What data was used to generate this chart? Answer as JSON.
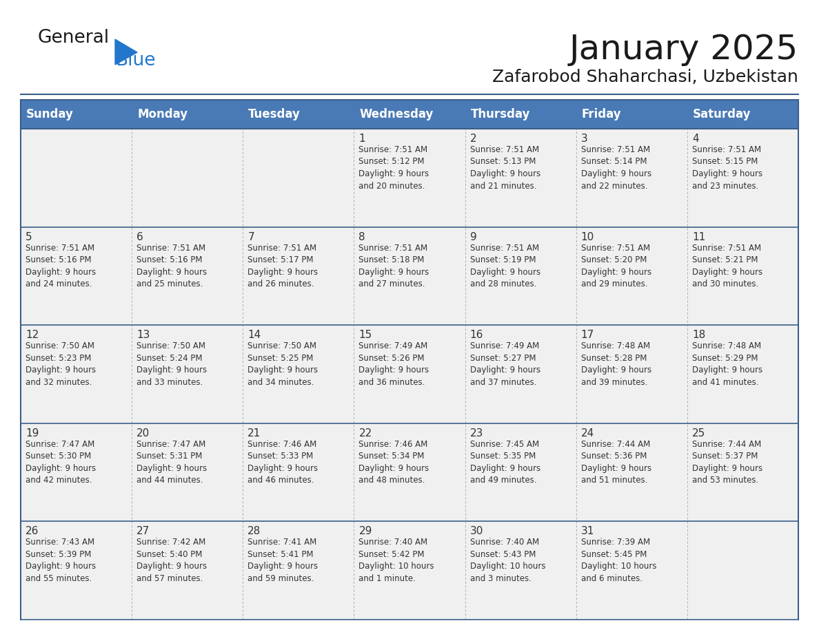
{
  "title": "January 2025",
  "subtitle": "Zafarobod Shaharchasi, Uzbekistan",
  "header_color": "#4a7ab5",
  "header_text_color": "#ffffff",
  "cell_bg_color": "#f0f0f0",
  "grid_color": "#3a5f8a",
  "text_color": "#333333",
  "days_of_week": [
    "Sunday",
    "Monday",
    "Tuesday",
    "Wednesday",
    "Thursday",
    "Friday",
    "Saturday"
  ],
  "calendar_data": [
    [
      {
        "day": "",
        "info": ""
      },
      {
        "day": "",
        "info": ""
      },
      {
        "day": "",
        "info": ""
      },
      {
        "day": "1",
        "info": "Sunrise: 7:51 AM\nSunset: 5:12 PM\nDaylight: 9 hours\nand 20 minutes."
      },
      {
        "day": "2",
        "info": "Sunrise: 7:51 AM\nSunset: 5:13 PM\nDaylight: 9 hours\nand 21 minutes."
      },
      {
        "day": "3",
        "info": "Sunrise: 7:51 AM\nSunset: 5:14 PM\nDaylight: 9 hours\nand 22 minutes."
      },
      {
        "day": "4",
        "info": "Sunrise: 7:51 AM\nSunset: 5:15 PM\nDaylight: 9 hours\nand 23 minutes."
      }
    ],
    [
      {
        "day": "5",
        "info": "Sunrise: 7:51 AM\nSunset: 5:16 PM\nDaylight: 9 hours\nand 24 minutes."
      },
      {
        "day": "6",
        "info": "Sunrise: 7:51 AM\nSunset: 5:16 PM\nDaylight: 9 hours\nand 25 minutes."
      },
      {
        "day": "7",
        "info": "Sunrise: 7:51 AM\nSunset: 5:17 PM\nDaylight: 9 hours\nand 26 minutes."
      },
      {
        "day": "8",
        "info": "Sunrise: 7:51 AM\nSunset: 5:18 PM\nDaylight: 9 hours\nand 27 minutes."
      },
      {
        "day": "9",
        "info": "Sunrise: 7:51 AM\nSunset: 5:19 PM\nDaylight: 9 hours\nand 28 minutes."
      },
      {
        "day": "10",
        "info": "Sunrise: 7:51 AM\nSunset: 5:20 PM\nDaylight: 9 hours\nand 29 minutes."
      },
      {
        "day": "11",
        "info": "Sunrise: 7:51 AM\nSunset: 5:21 PM\nDaylight: 9 hours\nand 30 minutes."
      }
    ],
    [
      {
        "day": "12",
        "info": "Sunrise: 7:50 AM\nSunset: 5:23 PM\nDaylight: 9 hours\nand 32 minutes."
      },
      {
        "day": "13",
        "info": "Sunrise: 7:50 AM\nSunset: 5:24 PM\nDaylight: 9 hours\nand 33 minutes."
      },
      {
        "day": "14",
        "info": "Sunrise: 7:50 AM\nSunset: 5:25 PM\nDaylight: 9 hours\nand 34 minutes."
      },
      {
        "day": "15",
        "info": "Sunrise: 7:49 AM\nSunset: 5:26 PM\nDaylight: 9 hours\nand 36 minutes."
      },
      {
        "day": "16",
        "info": "Sunrise: 7:49 AM\nSunset: 5:27 PM\nDaylight: 9 hours\nand 37 minutes."
      },
      {
        "day": "17",
        "info": "Sunrise: 7:48 AM\nSunset: 5:28 PM\nDaylight: 9 hours\nand 39 minutes."
      },
      {
        "day": "18",
        "info": "Sunrise: 7:48 AM\nSunset: 5:29 PM\nDaylight: 9 hours\nand 41 minutes."
      }
    ],
    [
      {
        "day": "19",
        "info": "Sunrise: 7:47 AM\nSunset: 5:30 PM\nDaylight: 9 hours\nand 42 minutes."
      },
      {
        "day": "20",
        "info": "Sunrise: 7:47 AM\nSunset: 5:31 PM\nDaylight: 9 hours\nand 44 minutes."
      },
      {
        "day": "21",
        "info": "Sunrise: 7:46 AM\nSunset: 5:33 PM\nDaylight: 9 hours\nand 46 minutes."
      },
      {
        "day": "22",
        "info": "Sunrise: 7:46 AM\nSunset: 5:34 PM\nDaylight: 9 hours\nand 48 minutes."
      },
      {
        "day": "23",
        "info": "Sunrise: 7:45 AM\nSunset: 5:35 PM\nDaylight: 9 hours\nand 49 minutes."
      },
      {
        "day": "24",
        "info": "Sunrise: 7:44 AM\nSunset: 5:36 PM\nDaylight: 9 hours\nand 51 minutes."
      },
      {
        "day": "25",
        "info": "Sunrise: 7:44 AM\nSunset: 5:37 PM\nDaylight: 9 hours\nand 53 minutes."
      }
    ],
    [
      {
        "day": "26",
        "info": "Sunrise: 7:43 AM\nSunset: 5:39 PM\nDaylight: 9 hours\nand 55 minutes."
      },
      {
        "day": "27",
        "info": "Sunrise: 7:42 AM\nSunset: 5:40 PM\nDaylight: 9 hours\nand 57 minutes."
      },
      {
        "day": "28",
        "info": "Sunrise: 7:41 AM\nSunset: 5:41 PM\nDaylight: 9 hours\nand 59 minutes."
      },
      {
        "day": "29",
        "info": "Sunrise: 7:40 AM\nSunset: 5:42 PM\nDaylight: 10 hours\nand 1 minute."
      },
      {
        "day": "30",
        "info": "Sunrise: 7:40 AM\nSunset: 5:43 PM\nDaylight: 10 hours\nand 3 minutes."
      },
      {
        "day": "31",
        "info": "Sunrise: 7:39 AM\nSunset: 5:45 PM\nDaylight: 10 hours\nand 6 minutes."
      },
      {
        "day": "",
        "info": ""
      }
    ]
  ],
  "logo_general_color": "#1a1a1a",
  "logo_blue_color": "#2277cc",
  "logo_triangle_color": "#2277cc",
  "title_fontsize": 36,
  "subtitle_fontsize": 18,
  "header_fontsize": 12,
  "day_number_fontsize": 11,
  "info_fontsize": 8.5
}
